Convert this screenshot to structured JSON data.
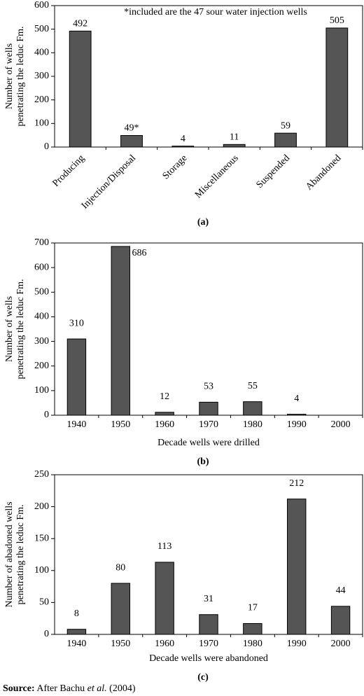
{
  "chart_data": [
    {
      "type": "bar",
      "caption": "(a)",
      "annotation": "*included are the 47 sour water injection wells",
      "ylabel": [
        "Number of wells",
        "penetrating the leduc Fm."
      ],
      "categories": [
        "Producing",
        "Injection/Disposal",
        "Storage",
        "Miscellaneous",
        "Suspended",
        "Abandoned"
      ],
      "values": [
        492,
        49,
        4,
        11,
        59,
        505
      ],
      "value_labels": [
        "492",
        "49*",
        "4",
        "11",
        "59",
        "505"
      ],
      "color": "#555555",
      "ylim": [
        0,
        600
      ],
      "yticks": [
        0,
        100,
        200,
        300,
        400,
        500,
        600
      ]
    },
    {
      "type": "bar",
      "caption": "(b)",
      "xlabel": "Decade wells were drilled",
      "ylabel": [
        "Number of wells",
        "penetrating the leduc Fm."
      ],
      "categories": [
        "1940",
        "1950",
        "1960",
        "1970",
        "1980",
        "1990",
        "2000"
      ],
      "values": [
        310,
        686,
        12,
        53,
        55,
        4,
        null
      ],
      "color": "#555555",
      "ylim": [
        0,
        700
      ],
      "yticks": [
        0,
        100,
        200,
        300,
        400,
        500,
        600,
        700
      ]
    },
    {
      "type": "bar",
      "caption": "(c)",
      "xlabel": "Decade wells were abandoned",
      "ylabel": [
        "Number of abadoned wells",
        "penetrating the leduc Fm."
      ],
      "categories": [
        "1940",
        "1950",
        "1960",
        "1970",
        "1980",
        "1990",
        "2000"
      ],
      "values": [
        8,
        80,
        113,
        31,
        17,
        212,
        44
      ],
      "color": "#555555",
      "ylim": [
        0,
        250
      ],
      "yticks": [
        0,
        50,
        100,
        150,
        200,
        250
      ]
    }
  ],
  "source": [
    "Source:",
    " After Bachu ",
    "et al.",
    " (2004)"
  ]
}
